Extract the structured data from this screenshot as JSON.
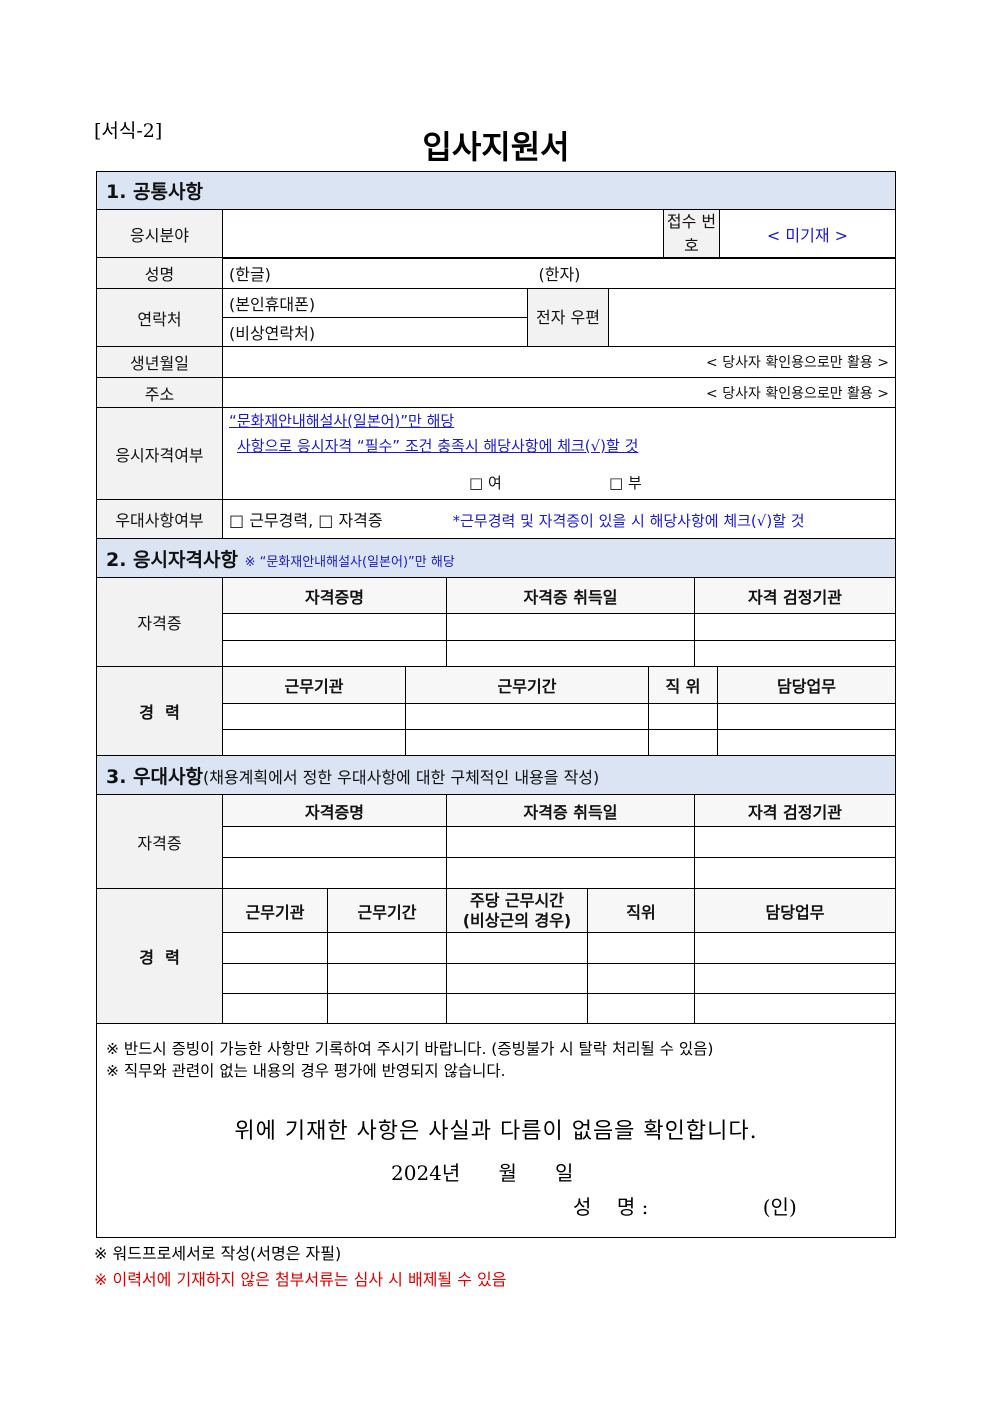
{
  "form_label": "[서식-2]",
  "title": "입사지원서",
  "s1": {
    "header": "1. 공통사항",
    "field_label": "응시분야",
    "receipt_label": "접수 번호",
    "receipt_value": "< 미기재 >",
    "name_label": "성명",
    "name_korean": "(한글)",
    "name_hanja": "(한자)",
    "contact_label": "연락처",
    "mobile": "(본인휴대폰)",
    "emergency": "(비상연락처)",
    "email_label": "전자 우편",
    "birth_label": "생년월일",
    "birth_note": "< 당사자 확인용으로만 활용 >",
    "address_label": "주소",
    "address_note": "< 당사자 확인용으로만 활용 >",
    "qual_label": "응시자격여부",
    "qual_note1": "“문화재안내해설사(일본어)”만 해당",
    "qual_note2": "사항으로 응시자격 “필수” 조건 충족시 해당사항에 체크(√)할 것",
    "yes": "□ 여",
    "no": "□ 부",
    "pref_label": "우대사항여부",
    "pref_options": "□ 근무경력, □ 자격증",
    "pref_note": "*근무경력 및 자격증이 있을 시 해당사항에 체크(√)할 것"
  },
  "s2": {
    "header": "2. 응시자격사항",
    "header_note": "※ “문화재안내해설사(일본어)”만 해당",
    "cert_label": "자격증",
    "cert_cols": [
      "자격증명",
      "자격증 취득일",
      "자격 검정기관"
    ],
    "career_label": "경  력",
    "career_cols": [
      "근무기관",
      "근무기간",
      "직 위",
      "담당업무"
    ]
  },
  "s3": {
    "header": "3. 우대사항",
    "header_note": "(채용계획에서 정한 우대사항에 대한 구체적인 내용을 작성)",
    "cert_label": "자격증",
    "cert_cols": [
      "자격증명",
      "자격증 취득일",
      "자격 검정기관"
    ],
    "career_label": "경  력",
    "career_cols": [
      "근무기관",
      "근무기간",
      "주당 근무시간\n(비상근의 경우)",
      "직위",
      "담당업무"
    ]
  },
  "notes": [
    "※ 반드시 증빙이 가능한 사항만 기록하여 주시기 바랍니다. (증빙불가 시 탈락 처리될 수 있음)",
    "※ 직무와 관련이 없는 내용의 경우 평가에 반영되지 않습니다."
  ],
  "confirm": "위에 기재한 사항은 사실과 다름이 없음을 확인합니다.",
  "date": "2024년      월      일",
  "sign": "성    명 :                  (인)",
  "footer1": "※ 워드프로세서로 작성(서명은 자필)",
  "footer2": "※ 이력서에 기재하지 않은 첨부서류는 심사 시 배제될 수 있음",
  "colors": {
    "header_bg": "#dbe4f3",
    "note_blue": "#1a1acc",
    "warning_red": "#e00000"
  }
}
